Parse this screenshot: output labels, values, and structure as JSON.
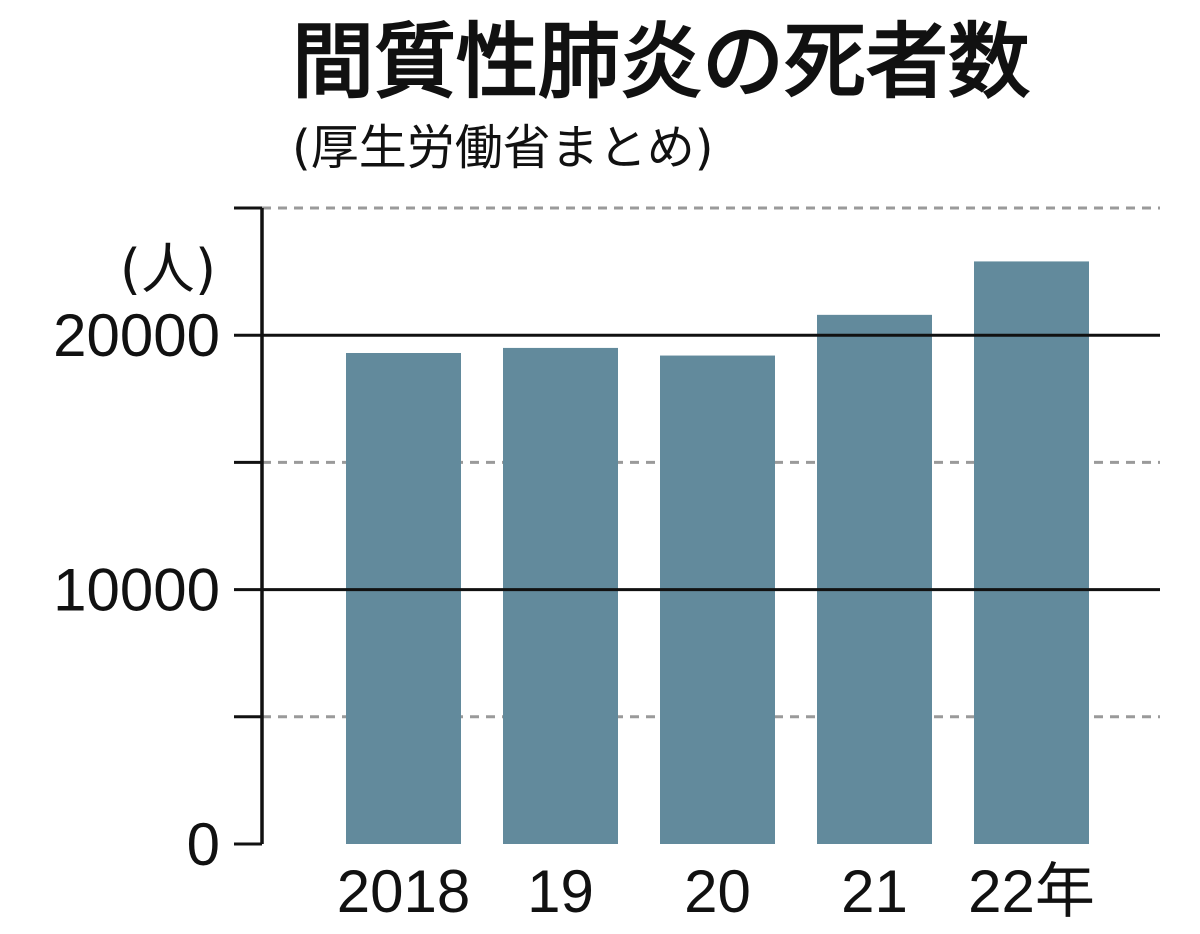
{
  "chart_data": {
    "type": "bar",
    "title": "間質性肺炎の死者数",
    "subtitle": "(厚生労働省まとめ)",
    "ylabel": "(人)",
    "categories": [
      "2018",
      "19",
      "20",
      "21",
      "22年"
    ],
    "values": [
      19300,
      19500,
      19200,
      20800,
      22900
    ],
    "ylim": [
      0,
      25000
    ],
    "y_ticks": [
      0,
      10000,
      20000
    ],
    "y_tick_labels": [
      "0",
      "10000",
      "20000"
    ],
    "minor_ticks": [
      5000,
      15000,
      25000
    ],
    "grid": true,
    "bar_color": "#628A9C"
  }
}
